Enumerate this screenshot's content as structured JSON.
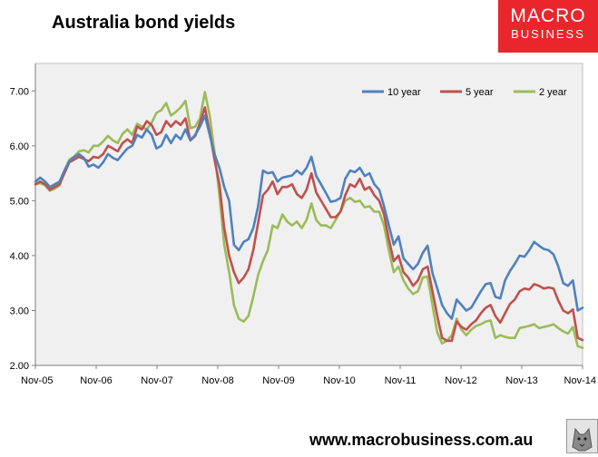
{
  "title": "Australia bond yields",
  "logo": {
    "line1": "MACRO",
    "line2": "BUSINESS",
    "color": "#e8262b"
  },
  "footer": {
    "url": "www.macrobusiness.com.au"
  },
  "chart_data": {
    "type": "line",
    "title": "Australia bond yields",
    "xlabel": "",
    "ylabel": "",
    "x_range": [
      "Nov-05",
      "Nov-14"
    ],
    "ylim": [
      2.0,
      7.5
    ],
    "y_ticks": [
      2.0,
      3.0,
      4.0,
      5.0,
      6.0,
      7.0
    ],
    "y_tick_labels": [
      "2.00",
      "3.00",
      "4.00",
      "5.00",
      "6.00",
      "7.00"
    ],
    "x_tick_labels": [
      "Nov-05",
      "Nov-06",
      "Nov-07",
      "Nov-08",
      "Nov-09",
      "Nov-10",
      "Nov-11",
      "Nov-12",
      "Nov-13",
      "Nov-14"
    ],
    "grid": false,
    "plot_background": "#f0f0f0",
    "legend": "top-right",
    "series": [
      {
        "name": "10 year",
        "color": "#4f81bd",
        "values": [
          5.35,
          5.42,
          5.35,
          5.25,
          5.3,
          5.35,
          5.55,
          5.72,
          5.8,
          5.85,
          5.78,
          5.62,
          5.66,
          5.6,
          5.7,
          5.85,
          5.78,
          5.74,
          5.85,
          5.95,
          6.0,
          6.2,
          6.15,
          6.3,
          6.2,
          5.95,
          6.0,
          6.2,
          6.05,
          6.2,
          6.12,
          6.3,
          6.1,
          6.2,
          6.35,
          6.55,
          6.2,
          5.85,
          5.6,
          5.25,
          5.0,
          4.2,
          4.1,
          4.25,
          4.3,
          4.5,
          4.9,
          5.55,
          5.5,
          5.52,
          5.35,
          5.42,
          5.44,
          5.46,
          5.55,
          5.48,
          5.6,
          5.8,
          5.45,
          5.3,
          5.14,
          4.98,
          5.0,
          5.05,
          5.4,
          5.55,
          5.52,
          5.6,
          5.45,
          5.5,
          5.3,
          5.2,
          4.9,
          4.55,
          4.2,
          4.35,
          3.95,
          3.85,
          3.75,
          3.85,
          4.05,
          4.18,
          3.68,
          3.4,
          3.1,
          2.95,
          2.85,
          3.2,
          3.1,
          3.0,
          3.05,
          3.2,
          3.35,
          3.48,
          3.5,
          3.25,
          3.22,
          3.55,
          3.72,
          3.85,
          4.0,
          3.98,
          4.1,
          4.25,
          4.18,
          4.12,
          4.1,
          4.02,
          3.8,
          3.5,
          3.45,
          3.55,
          3.0,
          3.05
        ]
      },
      {
        "name": "5 year",
        "color": "#c0504d",
        "values": [
          5.3,
          5.35,
          5.3,
          5.2,
          5.25,
          5.3,
          5.5,
          5.7,
          5.75,
          5.8,
          5.76,
          5.72,
          5.8,
          5.78,
          5.85,
          6.0,
          5.95,
          5.9,
          6.05,
          6.12,
          6.05,
          6.35,
          6.3,
          6.45,
          6.38,
          6.2,
          6.25,
          6.45,
          6.35,
          6.45,
          6.38,
          6.5,
          6.1,
          6.18,
          6.42,
          6.7,
          6.25,
          5.75,
          5.3,
          4.5,
          4.0,
          3.7,
          3.5,
          3.6,
          3.75,
          4.1,
          4.6,
          5.1,
          5.2,
          5.35,
          5.12,
          5.25,
          5.25,
          5.3,
          5.12,
          5.05,
          5.2,
          5.5,
          5.15,
          5.0,
          4.85,
          4.7,
          4.7,
          4.8,
          5.1,
          5.3,
          5.25,
          5.4,
          5.2,
          5.25,
          5.1,
          5.0,
          4.75,
          4.3,
          3.9,
          4.0,
          3.7,
          3.6,
          3.45,
          3.55,
          3.75,
          3.8,
          3.35,
          2.9,
          2.5,
          2.45,
          2.45,
          2.8,
          2.7,
          2.65,
          2.75,
          2.82,
          2.95,
          3.05,
          3.1,
          2.9,
          2.78,
          2.95,
          3.12,
          3.2,
          3.35,
          3.4,
          3.38,
          3.48,
          3.45,
          3.4,
          3.42,
          3.4,
          3.18,
          3.0,
          2.95,
          3.02,
          2.5,
          2.46
        ]
      },
      {
        "name": "2 year",
        "color": "#9bbb59",
        "values": [
          5.3,
          5.32,
          5.28,
          5.18,
          5.22,
          5.28,
          5.55,
          5.75,
          5.8,
          5.9,
          5.92,
          5.88,
          6.0,
          6.0,
          6.08,
          6.18,
          6.1,
          6.05,
          6.22,
          6.3,
          6.2,
          6.4,
          6.35,
          6.3,
          6.42,
          6.6,
          6.65,
          6.78,
          6.55,
          6.62,
          6.7,
          6.82,
          6.32,
          6.35,
          6.5,
          6.98,
          6.55,
          5.88,
          5.1,
          4.2,
          3.7,
          3.1,
          2.85,
          2.8,
          2.9,
          3.25,
          3.65,
          3.9,
          4.1,
          4.55,
          4.5,
          4.75,
          4.62,
          4.55,
          4.62,
          4.5,
          4.65,
          4.95,
          4.65,
          4.55,
          4.55,
          4.5,
          4.65,
          4.8,
          5.0,
          5.05,
          4.98,
          5.0,
          4.88,
          4.9,
          4.8,
          4.8,
          4.55,
          4.1,
          3.7,
          3.8,
          3.55,
          3.4,
          3.3,
          3.35,
          3.6,
          3.62,
          3.1,
          2.6,
          2.4,
          2.45,
          2.55,
          2.85,
          2.65,
          2.55,
          2.65,
          2.72,
          2.75,
          2.8,
          2.82,
          2.5,
          2.55,
          2.52,
          2.5,
          2.5,
          2.68,
          2.7,
          2.72,
          2.75,
          2.68,
          2.7,
          2.72,
          2.75,
          2.68,
          2.62,
          2.58,
          2.7,
          2.35,
          2.32
        ]
      }
    ]
  }
}
